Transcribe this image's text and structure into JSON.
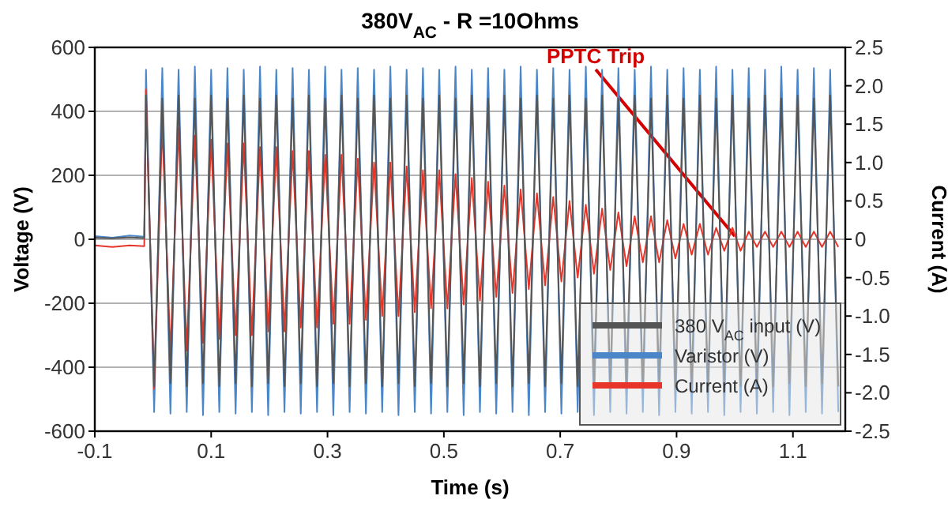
{
  "chart_data": {
    "type": "line",
    "title": "380V$_{AC}$ - R =10Ohms",
    "xlabel": "Time (s)",
    "ylabel": "Voltage (V)",
    "y2label": "Current (A)",
    "xlim": [
      -0.1,
      1.19
    ],
    "xticks": [
      -0.1,
      0.1,
      0.3,
      0.5,
      0.7,
      0.9,
      1.1
    ],
    "ylim": [
      -600,
      600
    ],
    "yticks": [
      -600,
      -400,
      -200,
      0,
      200,
      400,
      600
    ],
    "y2lim": [
      -2.5,
      2.5
    ],
    "y2ticks": [
      -2.5,
      {
        "value": -2,
        "label": "-2.0"
      },
      -1.5,
      {
        "value": -1,
        "label": "-1.0"
      },
      -0.5,
      0,
      0.5,
      {
        "value": 1,
        "label": "1.0"
      },
      1.5,
      {
        "value": 2,
        "label": "2.0"
      },
      2.5
    ],
    "grid": "y",
    "legend": "bottom right",
    "line_style": "solid",
    "marker": "none",
    "annotations": [
      {
        "text": "PPTC Trip",
        "x": 1.0,
        "y": 10
      }
    ],
    "x": [
      -0.1,
      -0.07,
      -0.04,
      -0.015,
      -0.012,
      0.002,
      0.016,
      0.03,
      0.044,
      0.058,
      0.072,
      0.086,
      0.1,
      0.114,
      0.128,
      0.142,
      0.156,
      0.17,
      0.184,
      0.198,
      0.212,
      0.226,
      0.24,
      0.254,
      0.268,
      0.282,
      0.296,
      0.31,
      0.324,
      0.338,
      0.352,
      0.366,
      0.38,
      0.394,
      0.408,
      0.422,
      0.436,
      0.45,
      0.464,
      0.478,
      0.492,
      0.506,
      0.52,
      0.534,
      0.548,
      0.562,
      0.576,
      0.59,
      0.604,
      0.618,
      0.632,
      0.646,
      0.66,
      0.674,
      0.688,
      0.702,
      0.716,
      0.73,
      0.744,
      0.758,
      0.772,
      0.786,
      0.8,
      0.814,
      0.828,
      0.842,
      0.856,
      0.87,
      0.884,
      0.898,
      0.912,
      0.926,
      0.94,
      0.954,
      0.968,
      0.982,
      0.996,
      1.01,
      1.024,
      1.038,
      1.052,
      1.066,
      1.08,
      1.094,
      1.108,
      1.122,
      1.136,
      1.15,
      1.164,
      1.178
    ],
    "series": [
      {
        "name": "380 V$_{AC}$ input (V)",
        "color": "#555555",
        "values": [
          5,
          3,
          6,
          4,
          450,
          -460,
          440,
          -450,
          450,
          -460,
          440,
          -450,
          450,
          -460,
          440,
          -450,
          450,
          -460,
          440,
          -450,
          450,
          -460,
          440,
          -450,
          450,
          -460,
          440,
          -450,
          450,
          -460,
          440,
          -450,
          450,
          -460,
          440,
          -450,
          450,
          -460,
          440,
          -450,
          450,
          -460,
          440,
          -450,
          450,
          -460,
          440,
          -450,
          450,
          -460,
          440,
          -450,
          450,
          -460,
          440,
          -450,
          450,
          -460,
          440,
          -450,
          450,
          -460,
          440,
          -450,
          450,
          -460,
          440,
          -450,
          450,
          -460,
          440,
          -450,
          450,
          -460,
          440,
          -450,
          450,
          -460,
          440,
          -450,
          450,
          -460,
          440,
          -450,
          450,
          -460,
          440,
          -450,
          450,
          -460
        ]
      },
      {
        "name": "Varistor (V)",
        "color": "#4a86c8",
        "values": [
          10,
          5,
          12,
          8,
          530,
          -540,
          535,
          -545,
          530,
          -540,
          540,
          -550,
          530,
          -540,
          535,
          -545,
          530,
          -540,
          540,
          -550,
          530,
          -540,
          535,
          -545,
          530,
          -540,
          540,
          -550,
          530,
          -540,
          535,
          -545,
          530,
          -540,
          540,
          -550,
          530,
          -540,
          535,
          -545,
          530,
          -540,
          540,
          -550,
          530,
          -540,
          535,
          -545,
          530,
          -540,
          540,
          -550,
          530,
          -540,
          535,
          -545,
          530,
          -540,
          540,
          -550,
          530,
          -540,
          535,
          -545,
          530,
          -540,
          540,
          -550,
          530,
          -540,
          535,
          -545,
          530,
          -540,
          540,
          -550,
          530,
          -540,
          535,
          -545,
          530,
          -540,
          540,
          -550,
          530,
          -540,
          535,
          -545,
          530,
          -540
        ]
      },
      {
        "name": "Current (A)",
        "color": "#e8352a",
        "axis": "y2",
        "values": [
          -0.08,
          -0.1,
          -0.08,
          -0.09,
          1.95,
          -1.95,
          1.5,
          -1.5,
          1.45,
          -1.45,
          1.35,
          -1.35,
          1.3,
          -1.3,
          1.25,
          -1.25,
          1.25,
          -1.25,
          1.2,
          -1.2,
          1.2,
          -1.2,
          1.15,
          -1.15,
          1.15,
          -1.15,
          1.1,
          -1.1,
          1.1,
          -1.1,
          1.05,
          -1.05,
          1.0,
          -1.0,
          1.0,
          -1.0,
          0.95,
          -0.95,
          0.9,
          -0.9,
          0.9,
          -0.9,
          0.85,
          -0.85,
          0.8,
          -0.8,
          0.75,
          -0.75,
          0.7,
          -0.7,
          0.65,
          -0.65,
          0.6,
          -0.6,
          0.55,
          -0.55,
          0.5,
          -0.5,
          0.45,
          -0.45,
          0.4,
          -0.4,
          0.35,
          -0.35,
          0.3,
          -0.3,
          0.3,
          -0.3,
          0.25,
          -0.25,
          0.2,
          -0.2,
          0.2,
          -0.2,
          0.15,
          -0.15,
          0.15,
          -0.15,
          0.1,
          -0.1,
          0.1,
          -0.1,
          0.1,
          -0.1,
          0.1,
          -0.1,
          0.1,
          -0.1,
          0.1,
          -0.1
        ]
      }
    ]
  }
}
